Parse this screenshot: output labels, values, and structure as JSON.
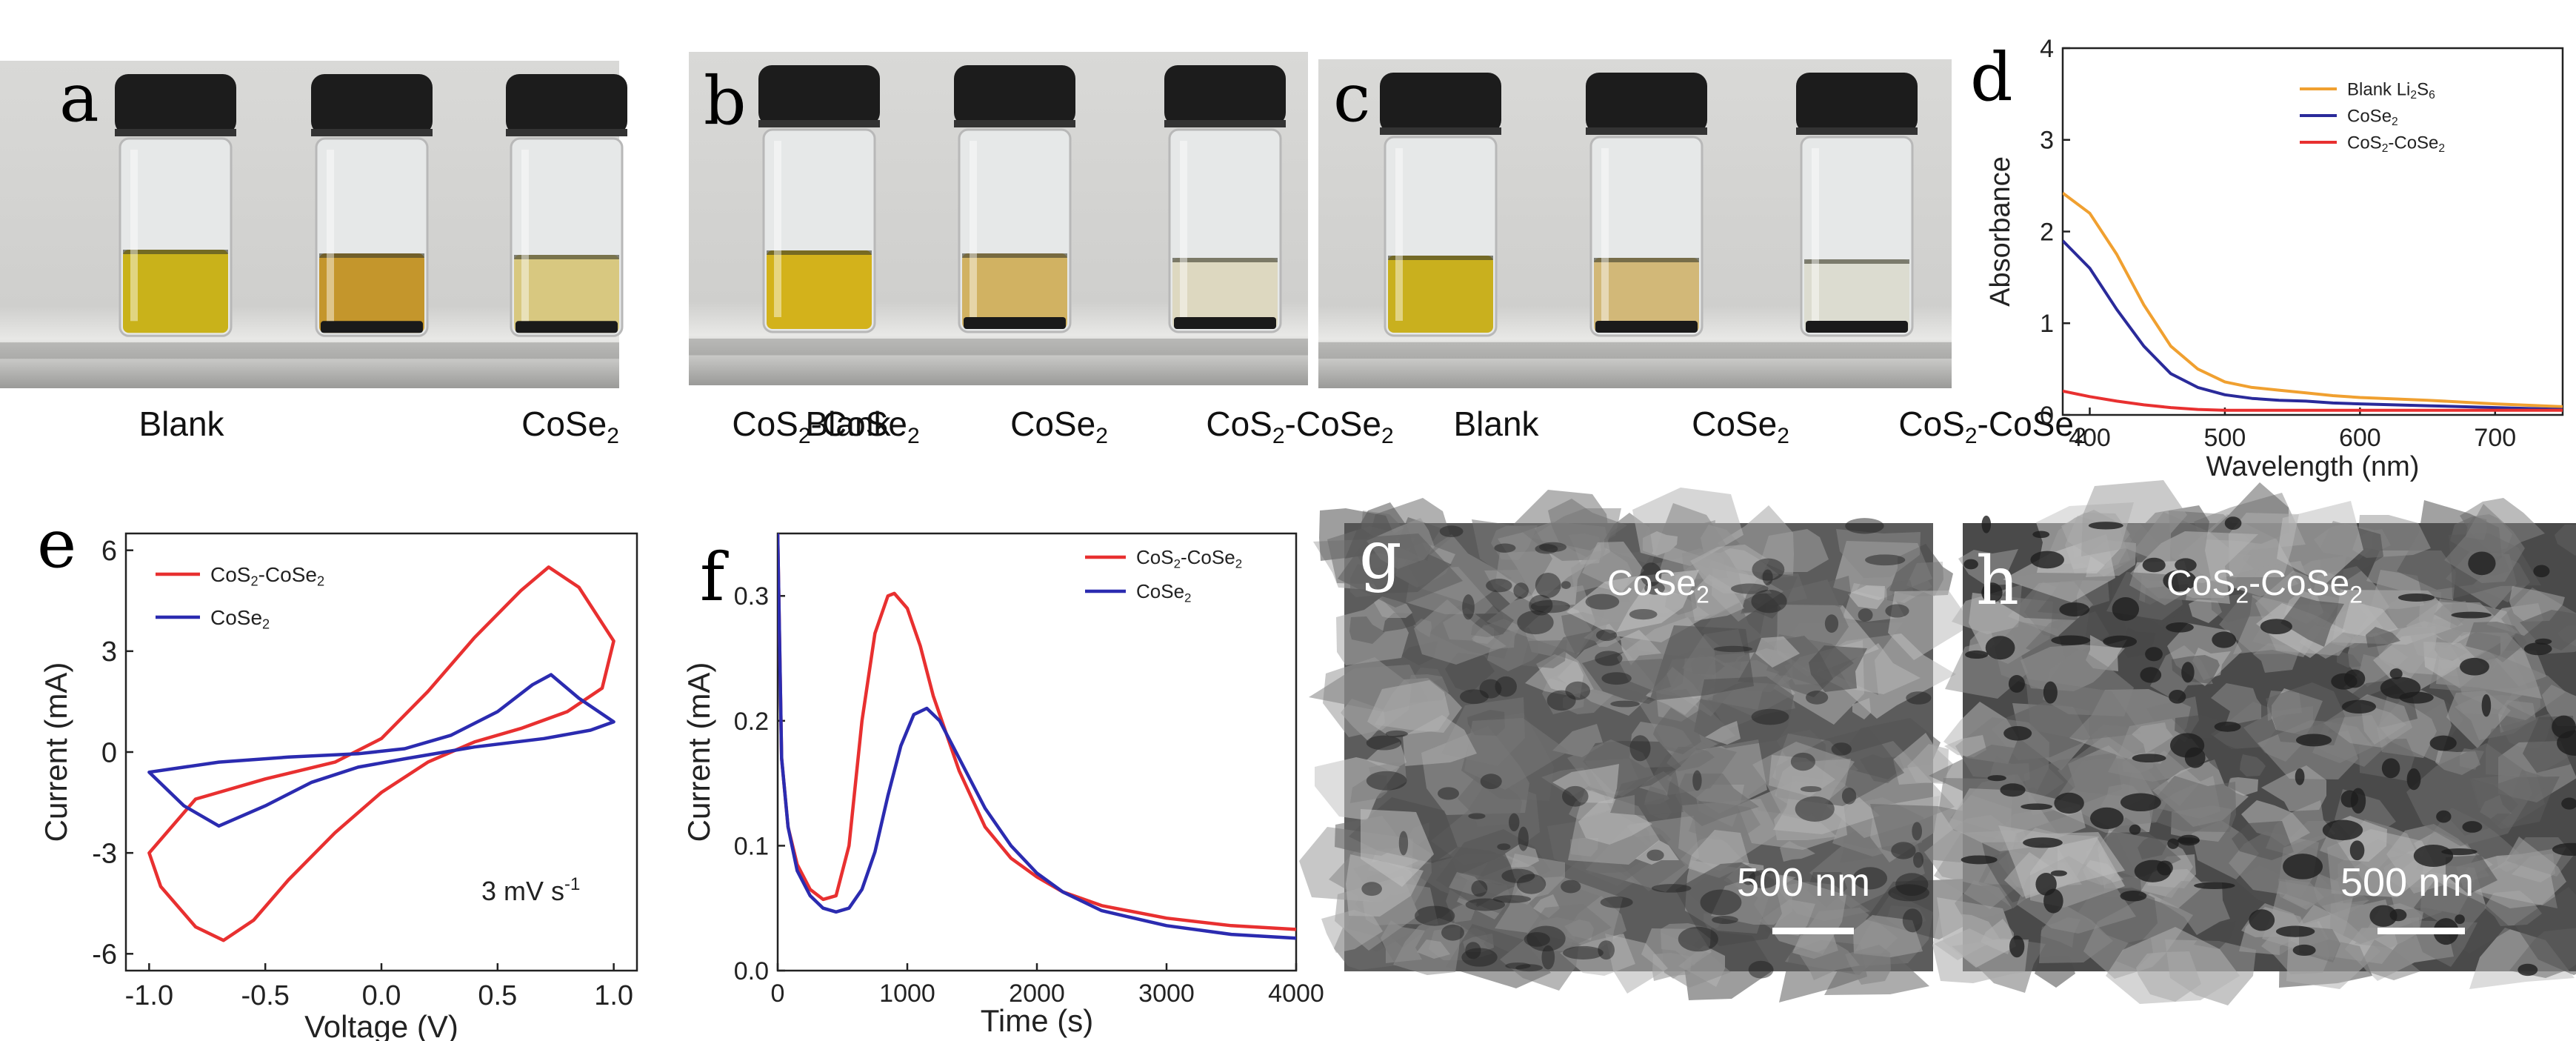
{
  "panels": {
    "a": {
      "letter": "a",
      "labels": [
        "Blank",
        "CoSe",
        "CoS",
        "CoSe"
      ]
    },
    "b": {
      "letter": "b"
    },
    "c": {
      "letter": "c"
    },
    "d": {
      "letter": "d"
    },
    "e": {
      "letter": "e"
    },
    "f": {
      "letter": "f"
    },
    "g": {
      "letter": "g",
      "material": "CoSe",
      "scale": "500 nm"
    },
    "h": {
      "letter": "h",
      "material": "CoS",
      "scale": "500 nm"
    }
  },
  "vial_labels": {
    "blank": "Blank",
    "cose": "CoSe",
    "cos": "CoS",
    "sub2": "2",
    "dash": "-"
  },
  "colors": {
    "orange": "#f0a030",
    "navy": "#2a2a9a",
    "red": "#e83030",
    "blue": "#2b2bb0"
  },
  "chart_data": [
    {
      "panel": "d",
      "type": "line",
      "xlabel": "Wavelength (nm)",
      "ylabel": "Absorbance",
      "xlim": [
        380,
        750
      ],
      "ylim": [
        0,
        4
      ],
      "xticks": [
        400,
        500,
        600,
        700
      ],
      "yticks": [
        0,
        1,
        2,
        3,
        4
      ],
      "legend": [
        "Blank Li2S6",
        "CoSe2",
        "CoS2-CoSe2"
      ],
      "series": [
        {
          "name": "Blank Li2S6",
          "color": "#f0a030",
          "x": [
            380,
            400,
            420,
            440,
            460,
            480,
            500,
            520,
            540,
            560,
            580,
            600,
            650,
            700,
            750
          ],
          "y": [
            2.42,
            2.2,
            1.75,
            1.2,
            0.75,
            0.5,
            0.36,
            0.3,
            0.27,
            0.24,
            0.21,
            0.19,
            0.16,
            0.12,
            0.09
          ]
        },
        {
          "name": "CoSe2",
          "color": "#2a2a9a",
          "x": [
            380,
            400,
            420,
            440,
            460,
            480,
            500,
            520,
            540,
            560,
            580,
            600,
            650,
            700,
            750
          ],
          "y": [
            1.9,
            1.6,
            1.15,
            0.75,
            0.45,
            0.3,
            0.22,
            0.18,
            0.16,
            0.15,
            0.13,
            0.12,
            0.1,
            0.08,
            0.06
          ]
        },
        {
          "name": "CoS2-CoSe2",
          "color": "#e83030",
          "x": [
            380,
            400,
            420,
            440,
            460,
            480,
            500,
            550,
            600,
            650,
            700,
            750
          ],
          "y": [
            0.26,
            0.2,
            0.15,
            0.11,
            0.08,
            0.06,
            0.05,
            0.05,
            0.05,
            0.05,
            0.05,
            0.05
          ]
        }
      ]
    },
    {
      "panel": "e",
      "type": "line",
      "xlabel": "Voltage (V)",
      "ylabel": "Current (mA)",
      "xlim": [
        -1.1,
        1.1
      ],
      "ylim": [
        -6.5,
        6.5
      ],
      "xticks": [
        -1.0,
        -0.5,
        0.0,
        0.5,
        1.0
      ],
      "ytick_labels": [
        "-6",
        "-3",
        "0",
        "3",
        "6"
      ],
      "yticks": [
        -6,
        -3,
        0,
        3,
        6
      ],
      "annotation": "3 mV s",
      "legend": [
        "CoS2-CoSe2",
        "CoSe2"
      ],
      "series": [
        {
          "name": "CoS2-CoSe2",
          "color": "#e83030",
          "x": [
            -1.0,
            -0.8,
            -0.5,
            -0.2,
            0.0,
            0.2,
            0.4,
            0.6,
            0.72,
            0.85,
            1.0,
            0.95,
            0.8,
            0.6,
            0.4,
            0.2,
            0.0,
            -0.2,
            -0.4,
            -0.55,
            -0.68,
            -0.8,
            -0.95,
            -1.0
          ],
          "y": [
            -3.0,
            -1.4,
            -0.8,
            -0.3,
            0.4,
            1.8,
            3.4,
            4.8,
            5.5,
            4.9,
            3.3,
            1.9,
            1.2,
            0.7,
            0.3,
            -0.3,
            -1.2,
            -2.4,
            -3.8,
            -5.0,
            -5.6,
            -5.2,
            -4.0,
            -3.0
          ]
        },
        {
          "name": "CoSe2",
          "color": "#2b2bb0",
          "x": [
            -1.0,
            -0.7,
            -0.4,
            -0.1,
            0.1,
            0.3,
            0.5,
            0.65,
            0.73,
            0.85,
            1.0,
            0.9,
            0.7,
            0.4,
            0.1,
            -0.1,
            -0.3,
            -0.5,
            -0.7,
            -0.85,
            -1.0
          ],
          "y": [
            -0.6,
            -0.3,
            -0.15,
            -0.05,
            0.1,
            0.5,
            1.2,
            2.0,
            2.3,
            1.6,
            0.9,
            0.65,
            0.4,
            0.15,
            -0.2,
            -0.45,
            -0.9,
            -1.6,
            -2.2,
            -1.6,
            -0.6
          ]
        }
      ]
    },
    {
      "panel": "f",
      "type": "line",
      "xlabel": "Time (s)",
      "ylabel": "Current (mA)",
      "xlim": [
        0,
        4000
      ],
      "ylim": [
        0,
        0.35
      ],
      "xticks": [
        0,
        1000,
        2000,
        3000,
        4000
      ],
      "yticks": [
        0.0,
        0.1,
        0.2,
        0.3
      ],
      "legend": [
        "CoS2-CoSe2",
        "CoSe2"
      ],
      "series": [
        {
          "name": "CoS2-CoSe2",
          "color": "#e83030",
          "x": [
            0,
            30,
            80,
            150,
            250,
            350,
            450,
            550,
            650,
            750,
            850,
            900,
            1000,
            1100,
            1200,
            1400,
            1600,
            1800,
            2000,
            2200,
            2500,
            3000,
            3500,
            4000
          ],
          "y": [
            0.35,
            0.17,
            0.115,
            0.085,
            0.065,
            0.057,
            0.06,
            0.1,
            0.2,
            0.27,
            0.3,
            0.302,
            0.29,
            0.26,
            0.22,
            0.16,
            0.115,
            0.09,
            0.075,
            0.063,
            0.052,
            0.042,
            0.036,
            0.033
          ]
        },
        {
          "name": "CoSe2",
          "color": "#2b2bb0",
          "x": [
            0,
            30,
            80,
            150,
            250,
            350,
            450,
            550,
            650,
            750,
            850,
            950,
            1050,
            1150,
            1250,
            1400,
            1600,
            1800,
            2000,
            2200,
            2500,
            3000,
            3500,
            4000
          ],
          "y": [
            0.35,
            0.17,
            0.115,
            0.08,
            0.06,
            0.05,
            0.047,
            0.05,
            0.065,
            0.095,
            0.14,
            0.18,
            0.205,
            0.21,
            0.2,
            0.17,
            0.13,
            0.1,
            0.078,
            0.063,
            0.048,
            0.036,
            0.029,
            0.026
          ]
        }
      ]
    }
  ]
}
